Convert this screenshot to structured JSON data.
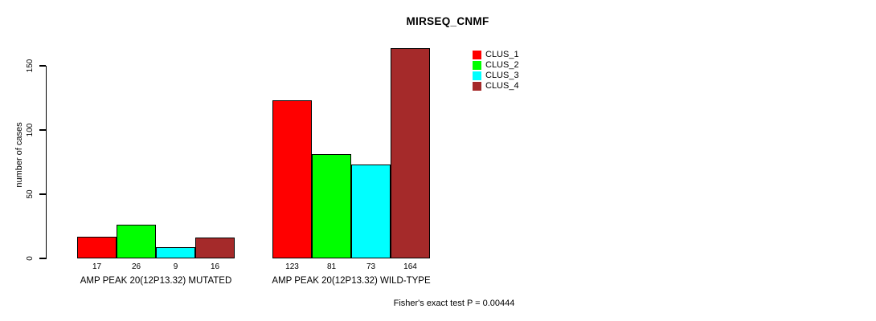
{
  "chart_data": {
    "type": "bar",
    "title": "MIRSEQ_CNMF",
    "xlabel": "",
    "ylabel": "number of cases",
    "annotation": "Fisher's exact test P = 0.00444",
    "categories": [
      "AMP PEAK 20(12P13.32) MUTATED",
      "AMP PEAK 20(12P13.32) WILD-TYPE"
    ],
    "series": [
      {
        "name": "CLUS_1",
        "color": "#ff0000",
        "values": [
          17,
          123
        ]
      },
      {
        "name": "CLUS_2",
        "color": "#00ff00",
        "values": [
          26,
          81
        ]
      },
      {
        "name": "CLUS_3",
        "color": "#00ffff",
        "values": [
          9,
          73
        ]
      },
      {
        "name": "CLUS_4",
        "color": "#a52a2a",
        "values": [
          16,
          164
        ]
      }
    ],
    "yticks": [
      0,
      50,
      100,
      150
    ],
    "ylim": [
      0,
      164
    ],
    "grid": false,
    "legend_position": "topright",
    "bar_value_labels_shown": true,
    "axis_color": "#000000",
    "bar_border_color": "#000000"
  }
}
